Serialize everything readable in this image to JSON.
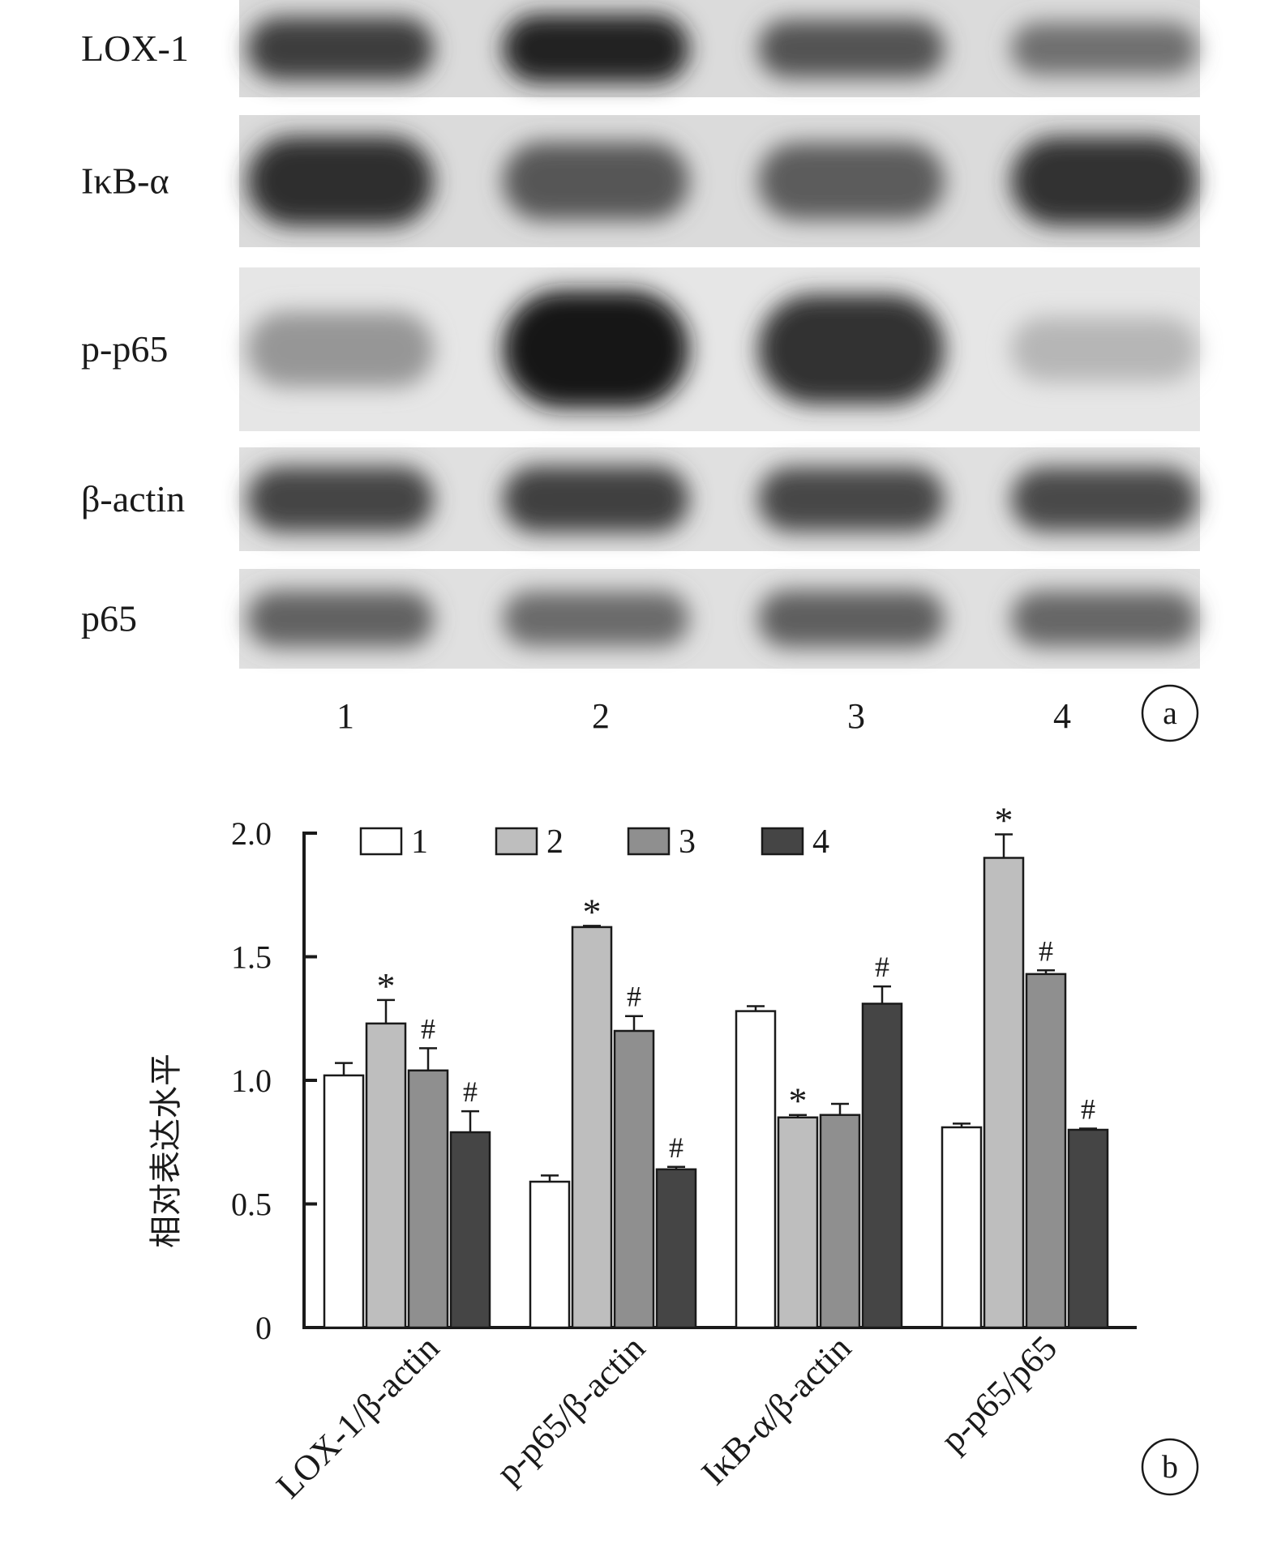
{
  "blot": {
    "rows": [
      {
        "label": "LOX-1",
        "intensity": [
          0.82,
          0.95,
          0.7,
          0.55
        ],
        "base": 0.86
      },
      {
        "label": "IκB-α",
        "intensity": [
          0.9,
          0.68,
          0.66,
          0.88
        ],
        "base": 0.86
      },
      {
        "label": "p-p65",
        "intensity": [
          0.35,
          1.0,
          0.88,
          0.18
        ],
        "base": 0.9
      },
      {
        "label": "β-actin",
        "intensity": [
          0.78,
          0.8,
          0.76,
          0.75
        ],
        "base": 0.88
      },
      {
        "label": "p65",
        "intensity": [
          0.62,
          0.58,
          0.64,
          0.6
        ],
        "base": 0.88
      }
    ],
    "lanes": [
      "1",
      "2",
      "3",
      "4"
    ],
    "panel_marker": "a"
  },
  "chart_data": {
    "type": "bar",
    "categories": [
      "LOX-1/β-actin",
      "p-p65/β-actin",
      "IκB-α/β-actin",
      "p-p65/p65"
    ],
    "series": [
      {
        "name": "1",
        "color": "#ffffff",
        "values": [
          1.02,
          0.59,
          1.28,
          0.81
        ],
        "errors": [
          0.05,
          0.025,
          0.02,
          0.015
        ],
        "marks": [
          "",
          "",
          "",
          ""
        ]
      },
      {
        "name": "2",
        "color": "#bebebe",
        "values": [
          1.23,
          1.62,
          0.85,
          1.9
        ],
        "errors": [
          0.095,
          0.005,
          0.01,
          0.095
        ],
        "marks": [
          "*",
          "*",
          "*",
          "*"
        ]
      },
      {
        "name": "3",
        "color": "#8f8f8f",
        "values": [
          1.04,
          1.2,
          0.86,
          1.43
        ],
        "errors": [
          0.09,
          0.06,
          0.045,
          0.015
        ],
        "marks": [
          "#",
          "#",
          "",
          "#"
        ]
      },
      {
        "name": "4",
        "color": "#454545",
        "values": [
          0.79,
          0.64,
          1.31,
          0.8
        ],
        "errors": [
          0.085,
          0.01,
          0.07,
          0.005
        ],
        "marks": [
          "#",
          "#",
          "#",
          "#"
        ]
      }
    ],
    "ylabel": "相对表达水平",
    "ylim": [
      0,
      2.0
    ],
    "yticks": [
      "0",
      "0.5",
      "1.0",
      "1.5",
      "2.0"
    ],
    "ytick_values": [
      0,
      0.5,
      1.0,
      1.5,
      2.0
    ],
    "legend": "top-left",
    "grid": false,
    "panel_marker": "b"
  }
}
